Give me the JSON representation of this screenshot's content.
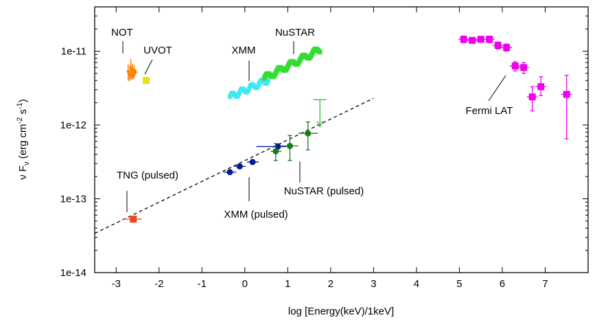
{
  "chart_data": {
    "type": "scatter",
    "xlabel": "log [Energy(keV)/1keV]",
    "ylabel_parts": {
      "main": "ν F",
      "sub": "ν",
      "units_a": " (erg cm",
      "exp_a": "-2",
      "units_b": " s",
      "exp_b": "-1",
      "units_c": ")"
    },
    "xlim": [
      -3.5,
      8.0
    ],
    "ylim_log10": [
      -14,
      -10.4
    ],
    "y_scale": "log",
    "x_ticks": [
      {
        "v": -3,
        "label": "-3"
      },
      {
        "v": -2,
        "label": "-2"
      },
      {
        "v": -1,
        "label": "-1"
      },
      {
        "v": 0,
        "label": "0"
      },
      {
        "v": 1,
        "label": "1"
      },
      {
        "v": 2,
        "label": "2"
      },
      {
        "v": 3,
        "label": "3"
      },
      {
        "v": 4,
        "label": "4"
      },
      {
        "v": 5,
        "label": "5"
      },
      {
        "v": 6,
        "label": "6"
      },
      {
        "v": 7,
        "label": "7"
      }
    ],
    "y_ticks": [
      {
        "e": -14,
        "label": "1e-14"
      },
      {
        "e": -13,
        "label": "1e-13"
      },
      {
        "e": -12,
        "label": "1e-12"
      },
      {
        "e": -11,
        "label": "1e-11"
      }
    ],
    "colors": {
      "not": "#ff8000",
      "uvot": "#e6e600",
      "xmm": "#40e8f0",
      "nustar": "#33dd33",
      "fermi": "#ee00ee",
      "tng": "#ee4422",
      "xmm_pulsed": "#001a99",
      "nustar_pulsed": "#1a7a1a"
    },
    "annotations": [
      {
        "key": "not",
        "text": "NOT"
      },
      {
        "key": "uvot",
        "text": "UVOT"
      },
      {
        "key": "xmm",
        "text": "XMM"
      },
      {
        "key": "nustar",
        "text": "NuSTAR"
      },
      {
        "key": "fermi",
        "text": "Fermi LAT"
      },
      {
        "key": "tng",
        "text": "TNG (pulsed)"
      },
      {
        "key": "xmm_pulsed",
        "text": "XMM (pulsed)"
      },
      {
        "key": "nustar_pulsed",
        "text": "NuSTAR (pulsed)"
      }
    ],
    "powerlaw_fit": {
      "x": [
        -3.5,
        3.0
      ],
      "y": [
        3.4e-14,
        2.3e-12
      ],
      "style": "dashed"
    },
    "series": [
      {
        "name": "NOT",
        "points": [
          [
            -2.72,
            5.3e-12
          ],
          [
            -2.69,
            4.8e-12
          ],
          [
            -2.66,
            6e-12
          ],
          [
            -2.64,
            5.1e-12
          ],
          [
            -2.62,
            5.6e-12
          ],
          [
            -2.6,
            4.9e-12
          ],
          [
            -2.58,
            5.4e-12
          ],
          [
            -2.55,
            5.2e-12
          ]
        ],
        "err": [
          0.25,
          0.18,
          0.3,
          0.2,
          0.22,
          0.15,
          0.2,
          0.1
        ]
      },
      {
        "name": "UVOT",
        "points": [
          [
            -2.3,
            4e-12
          ]
        ]
      },
      {
        "name": "XMM",
        "x_start": -0.35,
        "x_end": 0.55,
        "y_start": 2.4e-12,
        "y_end": 4.1e-12,
        "n": 60
      },
      {
        "name": "NuSTAR",
        "x_start": 0.45,
        "x_end": 1.75,
        "y_start": 4.3e-12,
        "y_end": 1.05e-11,
        "n": 70
      },
      {
        "name": "Fermi LAT",
        "points": [
          {
            "x": 5.1,
            "y": 1.45e-11,
            "yl": 1.3e-11,
            "yh": 1.6e-11
          },
          {
            "x": 5.3,
            "y": 1.4e-11,
            "yl": 1.28e-11,
            "yh": 1.52e-11
          },
          {
            "x": 5.5,
            "y": 1.45e-11,
            "yl": 1.32e-11,
            "yh": 1.58e-11
          },
          {
            "x": 5.7,
            "y": 1.45e-11,
            "yl": 1.3e-11,
            "yh": 1.6e-11
          },
          {
            "x": 5.9,
            "y": 1.2e-11,
            "yl": 1.07e-11,
            "yh": 1.33e-11
          },
          {
            "x": 6.1,
            "y": 1.12e-11,
            "yl": 1e-11,
            "yh": 1.25e-11
          },
          {
            "x": 6.3,
            "y": 6.3e-12,
            "yl": 5.4e-12,
            "yh": 7.2e-12
          },
          {
            "x": 6.5,
            "y": 6e-12,
            "yl": 5e-12,
            "yh": 7e-12
          },
          {
            "x": 6.7,
            "y": 2.4e-12,
            "yl": 1.55e-12,
            "yh": 3.3e-12
          },
          {
            "x": 6.9,
            "y": 3.3e-12,
            "yl": 2.5e-12,
            "yh": 4.5e-12
          },
          {
            "x": 7.5,
            "y": 2.6e-12,
            "yl": 6.5e-13,
            "yh": 4.7e-12
          }
        ]
      },
      {
        "name": "TNG (pulsed)",
        "points": [
          {
            "x": -2.6,
            "y": 5.3e-14,
            "xl": -2.85,
            "xh": -2.4
          }
        ]
      },
      {
        "name": "XMM (pulsed)",
        "points": [
          {
            "x": -0.35,
            "y": 2.3e-13,
            "xl": -0.5,
            "xh": -0.2
          },
          {
            "x": -0.12,
            "y": 2.75e-13,
            "xl": -0.25,
            "xh": 0.02
          },
          {
            "x": 0.18,
            "y": 3.15e-13,
            "xl": 0.05,
            "xh": 0.32
          },
          {
            "x": 0.77,
            "y": 5.1e-13,
            "xl": 0.27,
            "xh": 0.97
          }
        ]
      },
      {
        "name": "NuSTAR (pulsed)",
        "points": [
          {
            "x": 0.72,
            "y": 4.4e-13,
            "xl": 0.6,
            "xh": 0.85,
            "yl": 3.3e-13,
            "yh": 5.6e-13
          },
          {
            "x": 1.05,
            "y": 5.2e-13,
            "xl": 0.85,
            "xh": 1.25,
            "yl": 3.3e-13,
            "yh": 7.2e-13
          },
          {
            "x": 1.47,
            "y": 7.7e-13,
            "xl": 1.25,
            "xh": 1.7,
            "yl": 4.6e-13,
            "yh": 1.1e-12
          }
        ],
        "upper_limit": {
          "x": 1.75,
          "y": 2.2e-12,
          "xl": 1.6,
          "xh": 1.9,
          "y_arrow": 9.5e-13
        }
      }
    ]
  }
}
